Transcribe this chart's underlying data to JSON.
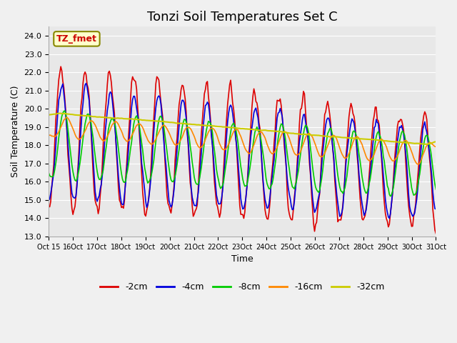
{
  "title": "Tonzi Soil Temperatures Set C",
  "xlabel": "Time",
  "ylabel": "Soil Temperature (C)",
  "ylim": [
    13.0,
    24.5
  ],
  "yticks": [
    13.0,
    14.0,
    15.0,
    16.0,
    17.0,
    18.0,
    19.0,
    20.0,
    21.0,
    22.0,
    23.0,
    24.0
  ],
  "series_labels": [
    "-2cm",
    "-4cm",
    "-8cm",
    "-16cm",
    "-32cm"
  ],
  "series_colors": [
    "#dd0000",
    "#0000dd",
    "#00cc00",
    "#ff8800",
    "#cccc00"
  ],
  "line_widths": [
    1.2,
    1.2,
    1.2,
    1.2,
    1.5
  ],
  "annotation_text": "TZ_fmet",
  "annotation_bg": "#ffffcc",
  "annotation_border": "#888800",
  "fig_bg": "#f0f0f0",
  "plot_bg": "#e8e8e8",
  "grid_color": "#ffffff",
  "title_fontsize": 13,
  "label_fontsize": 9,
  "tick_fontsize": 8
}
